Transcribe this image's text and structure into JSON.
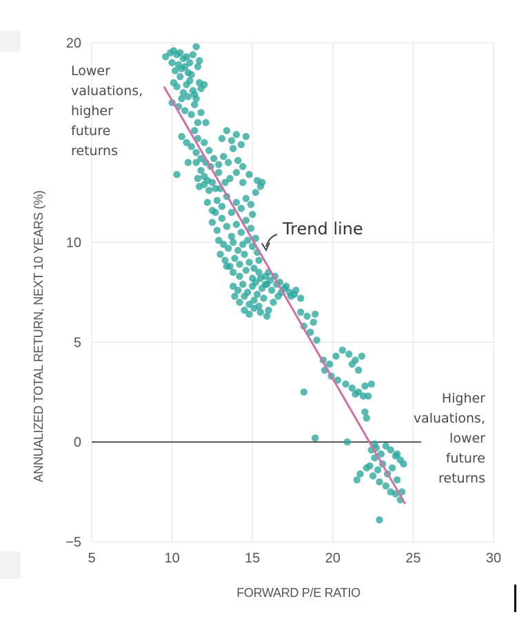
{
  "chart_data": {
    "type": "scatter",
    "xlabel": "FORWARD P/E RATIO",
    "ylabel": "ANNUALIZED TOTAL RETURN, NEXT 10 YEARS (%)",
    "xlim": [
      5,
      30
    ],
    "ylim": [
      -5,
      20
    ],
    "xticks": [
      5,
      10,
      15,
      20,
      25,
      30
    ],
    "yticks": [
      -5,
      0,
      5,
      10,
      20
    ],
    "grid": true,
    "annotations": {
      "top_left": [
        "Lower",
        "valuations,",
        "higher",
        "future",
        "returns"
      ],
      "bottom_right": [
        "Higher",
        "valuations,",
        "lower",
        "future",
        "returns"
      ],
      "trend_label": "Trend line"
    },
    "trend_line": {
      "x": [
        9.5,
        24.5
      ],
      "y": [
        17.8,
        -3.1
      ]
    },
    "series": [
      {
        "color": "#2aa79b",
        "points": [
          [
            9.6,
            19.3
          ],
          [
            9.9,
            19.5
          ],
          [
            10.1,
            19.6
          ],
          [
            10.3,
            19.4
          ],
          [
            10.5,
            19.5
          ],
          [
            10.7,
            19.2
          ],
          [
            10.9,
            19.3
          ],
          [
            11.1,
            19.0
          ],
          [
            11.3,
            19.4
          ],
          [
            11.5,
            19.8
          ],
          [
            11.7,
            19.1
          ],
          [
            10.0,
            19.0
          ],
          [
            10.2,
            18.6
          ],
          [
            10.4,
            18.9
          ],
          [
            10.6,
            18.7
          ],
          [
            10.8,
            18.8
          ],
          [
            11.0,
            18.5
          ],
          [
            11.2,
            18.4
          ],
          [
            11.6,
            18.8
          ],
          [
            11.4,
            17.4
          ],
          [
            11.8,
            17.7
          ],
          [
            10.1,
            18.0
          ],
          [
            10.3,
            17.8
          ],
          [
            10.5,
            18.3
          ],
          [
            10.7,
            17.5
          ],
          [
            10.9,
            17.9
          ],
          [
            11.1,
            18.1
          ],
          [
            11.3,
            17.6
          ],
          [
            11.5,
            17.2
          ],
          [
            11.7,
            18.0
          ],
          [
            12.0,
            17.9
          ],
          [
            10.0,
            17.0
          ],
          [
            10.4,
            16.8
          ],
          [
            10.6,
            17.2
          ],
          [
            10.8,
            16.6
          ],
          [
            11.0,
            17.3
          ],
          [
            11.2,
            16.4
          ],
          [
            11.4,
            16.9
          ],
          [
            11.6,
            16.0
          ],
          [
            11.8,
            16.5
          ],
          [
            11.4,
            15.6
          ],
          [
            10.6,
            15.3
          ],
          [
            10.9,
            15.0
          ],
          [
            11.2,
            14.8
          ],
          [
            11.5,
            14.5
          ],
          [
            11.8,
            14.2
          ],
          [
            12.1,
            14.0
          ],
          [
            12.4,
            13.8
          ],
          [
            11.0,
            14.0
          ],
          [
            11.6,
            15.2
          ],
          [
            11.5,
            14.0
          ],
          [
            12.0,
            15.0
          ],
          [
            12.1,
            16.0
          ],
          [
            10.3,
            13.4
          ],
          [
            11.6,
            13.2
          ],
          [
            11.8,
            13.6
          ],
          [
            12.0,
            13.3
          ],
          [
            12.2,
            13.1
          ],
          [
            11.7,
            12.8
          ],
          [
            12.0,
            12.9
          ],
          [
            12.3,
            12.6
          ],
          [
            12.5,
            13.0
          ],
          [
            12.7,
            12.7
          ],
          [
            12.9,
            13.5
          ],
          [
            12.3,
            14.6
          ],
          [
            12.6,
            14.2
          ],
          [
            12.9,
            13.9
          ],
          [
            13.2,
            14.3
          ],
          [
            13.5,
            14.0
          ],
          [
            13.8,
            14.7
          ],
          [
            14.1,
            14.1
          ],
          [
            14.4,
            13.8
          ],
          [
            13.1,
            15.2
          ],
          [
            13.4,
            15.6
          ],
          [
            13.7,
            15.1
          ],
          [
            14.0,
            15.4
          ],
          [
            14.3,
            14.9
          ],
          [
            14.6,
            15.3
          ],
          [
            12.2,
            12.0
          ],
          [
            12.5,
            11.6
          ],
          [
            12.8,
            12.1
          ],
          [
            13.1,
            11.8
          ],
          [
            13.4,
            12.3
          ],
          [
            13.7,
            11.5
          ],
          [
            14.0,
            12.0
          ],
          [
            14.3,
            11.7
          ],
          [
            14.6,
            12.2
          ],
          [
            14.9,
            11.9
          ],
          [
            15.2,
            12.5
          ],
          [
            15.5,
            12.8
          ],
          [
            13.0,
            12.7
          ],
          [
            13.3,
            13.0
          ],
          [
            13.6,
            13.2
          ],
          [
            14.0,
            13.5
          ],
          [
            14.4,
            13.0
          ],
          [
            14.8,
            13.4
          ],
          [
            15.3,
            13.1
          ],
          [
            15.6,
            13.0
          ],
          [
            12.5,
            11.0
          ],
          [
            12.8,
            10.6
          ],
          [
            13.1,
            11.2
          ],
          [
            13.4,
            10.8
          ],
          [
            13.7,
            10.3
          ],
          [
            14.0,
            10.9
          ],
          [
            14.3,
            10.5
          ],
          [
            14.6,
            11.1
          ],
          [
            14.9,
            10.7
          ],
          [
            15.2,
            10.2
          ],
          [
            12.9,
            10.1
          ],
          [
            13.2,
            9.9
          ],
          [
            13.5,
            9.7
          ],
          [
            13.8,
            10.0
          ],
          [
            14.1,
            9.6
          ],
          [
            14.4,
            9.9
          ],
          [
            14.7,
            10.1
          ],
          [
            15.0,
            9.8
          ],
          [
            15.3,
            9.5
          ],
          [
            12.7,
            11.5
          ],
          [
            15.0,
            11.4
          ],
          [
            13.0,
            9.4
          ],
          [
            13.3,
            9.1
          ],
          [
            13.6,
            8.8
          ],
          [
            13.9,
            9.2
          ],
          [
            14.2,
            8.9
          ],
          [
            14.5,
            9.4
          ],
          [
            14.8,
            9.0
          ],
          [
            15.1,
            8.7
          ],
          [
            15.4,
            9.1
          ],
          [
            13.4,
            8.8
          ],
          [
            13.8,
            8.5
          ],
          [
            14.2,
            8.3
          ],
          [
            14.6,
            8.6
          ],
          [
            15.0,
            8.2
          ],
          [
            15.4,
            8.5
          ],
          [
            15.8,
            8.3
          ],
          [
            13.8,
            7.8
          ],
          [
            14.1,
            7.6
          ],
          [
            14.4,
            7.9
          ],
          [
            14.7,
            7.5
          ],
          [
            15.0,
            7.8
          ],
          [
            15.3,
            7.4
          ],
          [
            15.6,
            7.7
          ],
          [
            15.9,
            7.9
          ],
          [
            16.2,
            7.6
          ],
          [
            16.5,
            7.9
          ],
          [
            16.8,
            7.5
          ],
          [
            17.1,
            7.8
          ],
          [
            17.4,
            7.3
          ],
          [
            17.7,
            7.6
          ],
          [
            18.0,
            7.2
          ],
          [
            13.9,
            7.3
          ],
          [
            14.2,
            7.0
          ],
          [
            14.5,
            7.3
          ],
          [
            14.8,
            6.9
          ],
          [
            15.1,
            7.1
          ],
          [
            15.4,
            6.8
          ],
          [
            15.7,
            7.2
          ],
          [
            16.0,
            6.6
          ],
          [
            16.3,
            7.0
          ],
          [
            16.6,
            7.3
          ],
          [
            14.5,
            6.6
          ],
          [
            14.8,
            6.4
          ],
          [
            15.1,
            6.7
          ],
          [
            15.5,
            6.5
          ],
          [
            15.9,
            6.3
          ],
          [
            15.2,
            8.0
          ],
          [
            15.5,
            8.2
          ],
          [
            15.8,
            7.9
          ],
          [
            16.1,
            8.1
          ],
          [
            16.4,
            8.3
          ],
          [
            16.7,
            8.0
          ],
          [
            17.0,
            7.7
          ],
          [
            17.3,
            7.5
          ],
          [
            17.6,
            7.4
          ],
          [
            16.0,
            8.5
          ],
          [
            18.0,
            6.5
          ],
          [
            18.4,
            6.3
          ],
          [
            18.8,
            6.0
          ],
          [
            18.2,
            5.8
          ],
          [
            18.6,
            5.5
          ],
          [
            19.0,
            5.1
          ],
          [
            18.9,
            6.4
          ],
          [
            19.4,
            4.1
          ],
          [
            19.8,
            3.9
          ],
          [
            20.2,
            4.3
          ],
          [
            19.5,
            3.6
          ],
          [
            19.9,
            3.3
          ],
          [
            20.3,
            3.1
          ],
          [
            20.6,
            4.6
          ],
          [
            21.0,
            4.4
          ],
          [
            21.4,
            4.1
          ],
          [
            21.8,
            4.3
          ],
          [
            21.2,
            3.9
          ],
          [
            21.6,
            3.6
          ],
          [
            20.8,
            2.9
          ],
          [
            21.2,
            2.7
          ],
          [
            21.6,
            2.5
          ],
          [
            22.0,
            2.8
          ],
          [
            22.4,
            2.9
          ],
          [
            21.4,
            2.4
          ],
          [
            21.9,
            2.3
          ],
          [
            22.2,
            2.3
          ],
          [
            22.0,
            1.5
          ],
          [
            22.1,
            1.2
          ],
          [
            18.2,
            2.5
          ],
          [
            18.9,
            0.2
          ],
          [
            20.9,
            0.0
          ],
          [
            22.4,
            -0.4
          ],
          [
            22.7,
            -0.3
          ],
          [
            23.0,
            -0.6
          ],
          [
            23.3,
            -0.2
          ],
          [
            23.6,
            -0.4
          ],
          [
            23.9,
            -0.7
          ],
          [
            24.2,
            -0.9
          ],
          [
            24.4,
            -1.1
          ],
          [
            22.6,
            -0.8
          ],
          [
            22.3,
            -1.2
          ],
          [
            22.8,
            -1.4
          ],
          [
            23.1,
            -1.1
          ],
          [
            23.4,
            -1.6
          ],
          [
            23.7,
            -1.3
          ],
          [
            24.0,
            -1.9
          ],
          [
            22.5,
            -1.7
          ],
          [
            22.9,
            -2.0
          ],
          [
            23.3,
            -2.2
          ],
          [
            23.6,
            -2.5
          ],
          [
            23.9,
            -2.6
          ],
          [
            24.2,
            -2.9
          ],
          [
            24.3,
            -2.5
          ],
          [
            21.5,
            -1.9
          ],
          [
            21.7,
            -1.6
          ],
          [
            22.1,
            -1.3
          ],
          [
            22.6,
            -0.1
          ],
          [
            24.0,
            -0.6
          ],
          [
            22.9,
            -3.9
          ]
        ]
      }
    ]
  }
}
